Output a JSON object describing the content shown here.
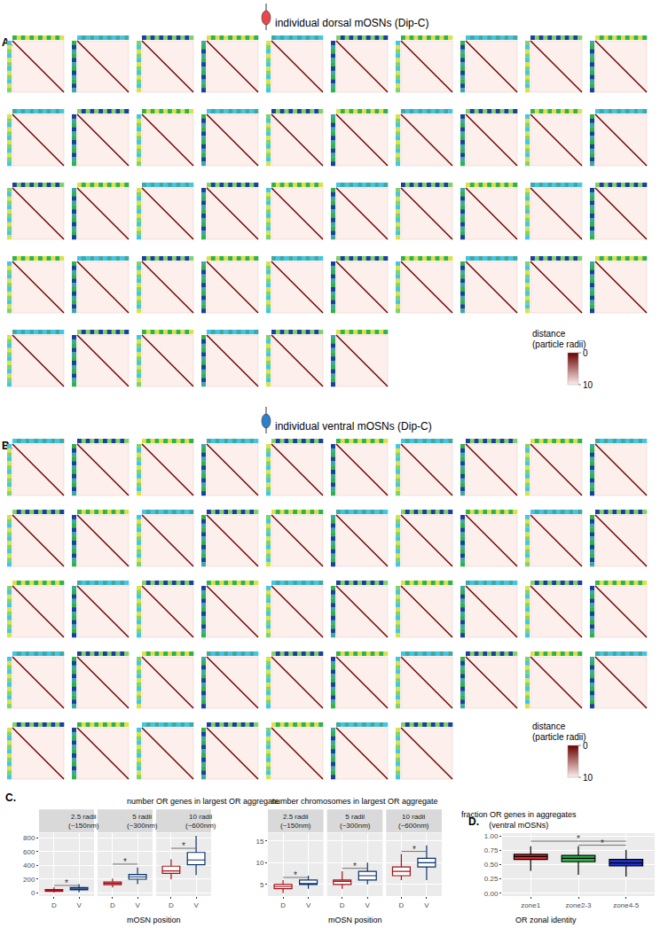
{
  "heatmap_panels": [
    {
      "label": "A.",
      "title": "individual dorsal mOSNs (Dip-C)",
      "color": "#e8474c",
      "n_maps": 46,
      "colorbar": {
        "title": [
          "distance",
          "(particle radii)"
        ],
        "range": [
          0,
          10
        ],
        "ticks": [
          0,
          10
        ],
        "colors": [
          "#6b0000",
          "#fdefec"
        ]
      }
    },
    {
      "label": "B.",
      "title": "individual ventral mOSNs (Dip-C)",
      "color": "#2f7fc8",
      "n_maps": 47,
      "colorbar": {
        "title": [
          "distance",
          "(particle radii)"
        ],
        "range": [
          0,
          10
        ],
        "ticks": [
          0,
          10
        ],
        "colors": [
          "#6b0000",
          "#fdefec"
        ]
      }
    }
  ],
  "chart_data": [
    {
      "type": "box",
      "panel_label": "C.",
      "title": [
        "number OR genes in largest OR aggregate"
      ],
      "x_label": "mOSN position",
      "marker": "outline",
      "grid": true,
      "facets": [
        [
          "2.5 radii",
          "(~150nm)"
        ],
        [
          "5 radii",
          "(~300nm)"
        ],
        [
          "10 radii",
          "(~600nm)"
        ]
      ],
      "categories": [
        "D",
        "V"
      ],
      "ylim": [
        -45,
        870
      ],
      "yticks": [
        0,
        200,
        400,
        600,
        800
      ],
      "boxes": [
        {
          "facet": 0,
          "category": "D",
          "color": "#a50f15",
          "lowerfence": 5,
          "q1": 25,
          "median": 35,
          "q3": 50,
          "upperfence": 85
        },
        {
          "facet": 0,
          "category": "V",
          "color": "#08306b",
          "lowerfence": 10,
          "q1": 45,
          "median": 60,
          "q3": 80,
          "upperfence": 130
        },
        {
          "facet": 1,
          "category": "D",
          "color": "#a50f15",
          "lowerfence": 80,
          "q1": 120,
          "median": 140,
          "q3": 160,
          "upperfence": 210
        },
        {
          "facet": 1,
          "category": "V",
          "color": "#08306b",
          "lowerfence": 130,
          "q1": 200,
          "median": 235,
          "q3": 270,
          "upperfence": 370
        },
        {
          "facet": 2,
          "category": "D",
          "color": "#a50f15",
          "lowerfence": 200,
          "q1": 285,
          "median": 320,
          "q3": 390,
          "upperfence": 490
        },
        {
          "facet": 2,
          "category": "V",
          "color": "#08306b",
          "lowerfence": 260,
          "q1": 410,
          "median": 480,
          "q3": 590,
          "upperfence": 830
        }
      ],
      "significance": [
        {
          "facet": 0,
          "from": "D",
          "to": "V",
          "y": 110,
          "label": "*"
        },
        {
          "facet": 1,
          "from": "D",
          "to": "V",
          "y": 420,
          "label": "*"
        },
        {
          "facet": 2,
          "from": "D",
          "to": "V",
          "y": 650,
          "label": "*"
        }
      ]
    },
    {
      "type": "box",
      "title": [
        "number chromosomes in largest OR aggregate"
      ],
      "x_label": "mOSN position",
      "marker": "outline",
      "grid": true,
      "facets": [
        [
          "2.5 radii",
          "(~150nm)"
        ],
        [
          "5 radii",
          "(~300nm)"
        ],
        [
          "10 radii",
          "(~600nm)"
        ]
      ],
      "categories": [
        "D",
        "V"
      ],
      "ylim": [
        2.3,
        16.8
      ],
      "yticks": [
        5,
        10,
        15
      ],
      "boxes": [
        {
          "facet": 0,
          "category": "D",
          "color": "#a50f15",
          "lowerfence": 3,
          "q1": 4,
          "median": 4.5,
          "q3": 5,
          "upperfence": 6
        },
        {
          "facet": 0,
          "category": "V",
          "color": "#08306b",
          "lowerfence": 4,
          "q1": 5,
          "median": 5,
          "q3": 6,
          "upperfence": 7
        },
        {
          "facet": 1,
          "category": "D",
          "color": "#a50f15",
          "lowerfence": 4,
          "q1": 5,
          "median": 5.7,
          "q3": 6,
          "upperfence": 8
        },
        {
          "facet": 1,
          "category": "V",
          "color": "#08306b",
          "lowerfence": 5,
          "q1": 6,
          "median": 7,
          "q3": 8,
          "upperfence": 10
        },
        {
          "facet": 2,
          "category": "D",
          "color": "#a50f15",
          "lowerfence": 6,
          "q1": 7,
          "median": 8,
          "q3": 9,
          "upperfence": 12
        },
        {
          "facet": 2,
          "category": "V",
          "color": "#08306b",
          "lowerfence": 6,
          "q1": 9,
          "median": 10,
          "q3": 11,
          "upperfence": 14
        }
      ],
      "significance": [
        {
          "facet": 0,
          "from": "D",
          "to": "V",
          "y": 6.6,
          "label": "*"
        },
        {
          "facet": 1,
          "from": "D",
          "to": "V",
          "y": 8.7,
          "label": "*"
        },
        {
          "facet": 2,
          "from": "D",
          "to": "V",
          "y": 12.6,
          "label": "*"
        }
      ]
    },
    {
      "type": "box",
      "panel_label": "D.",
      "title": [
        "fraction OR genes in aggregates",
        "(ventral mOSNs)"
      ],
      "x_label": "OR zonal identity",
      "marker": "filled",
      "grid": true,
      "categories": [
        "zone1",
        "zone2-3",
        "zone4-5"
      ],
      "ylim": [
        -0.05,
        1.05
      ],
      "yticks": [
        {
          "value": 0,
          "label": "0.00"
        },
        {
          "value": 0.25,
          "label": "0.25"
        },
        {
          "value": 0.5,
          "label": "0.50"
        },
        {
          "value": 0.75,
          "label": "0.75"
        },
        {
          "value": 1,
          "label": "1.00"
        }
      ],
      "boxes": [
        {
          "category": "zone1",
          "color": "#e8262b",
          "lowerfence": 0.39,
          "q1": 0.59,
          "median": 0.64,
          "q3": 0.68,
          "upperfence": 0.82
        },
        {
          "category": "zone2-3",
          "color": "#2bb34a",
          "lowerfence": 0.32,
          "q1": 0.55,
          "median": 0.61,
          "q3": 0.66,
          "upperfence": 0.82
        },
        {
          "category": "zone4-5",
          "color": "#1f2fd8",
          "lowerfence": 0.29,
          "q1": 0.48,
          "median": 0.53,
          "q3": 0.59,
          "upperfence": 0.76
        }
      ],
      "significance": [
        {
          "from": "zone1",
          "to": "zone4-5",
          "y": 0.91,
          "label": "*"
        },
        {
          "from": "zone2-3",
          "to": "zone4-5",
          "y": 0.84,
          "label": "*"
        }
      ]
    }
  ]
}
